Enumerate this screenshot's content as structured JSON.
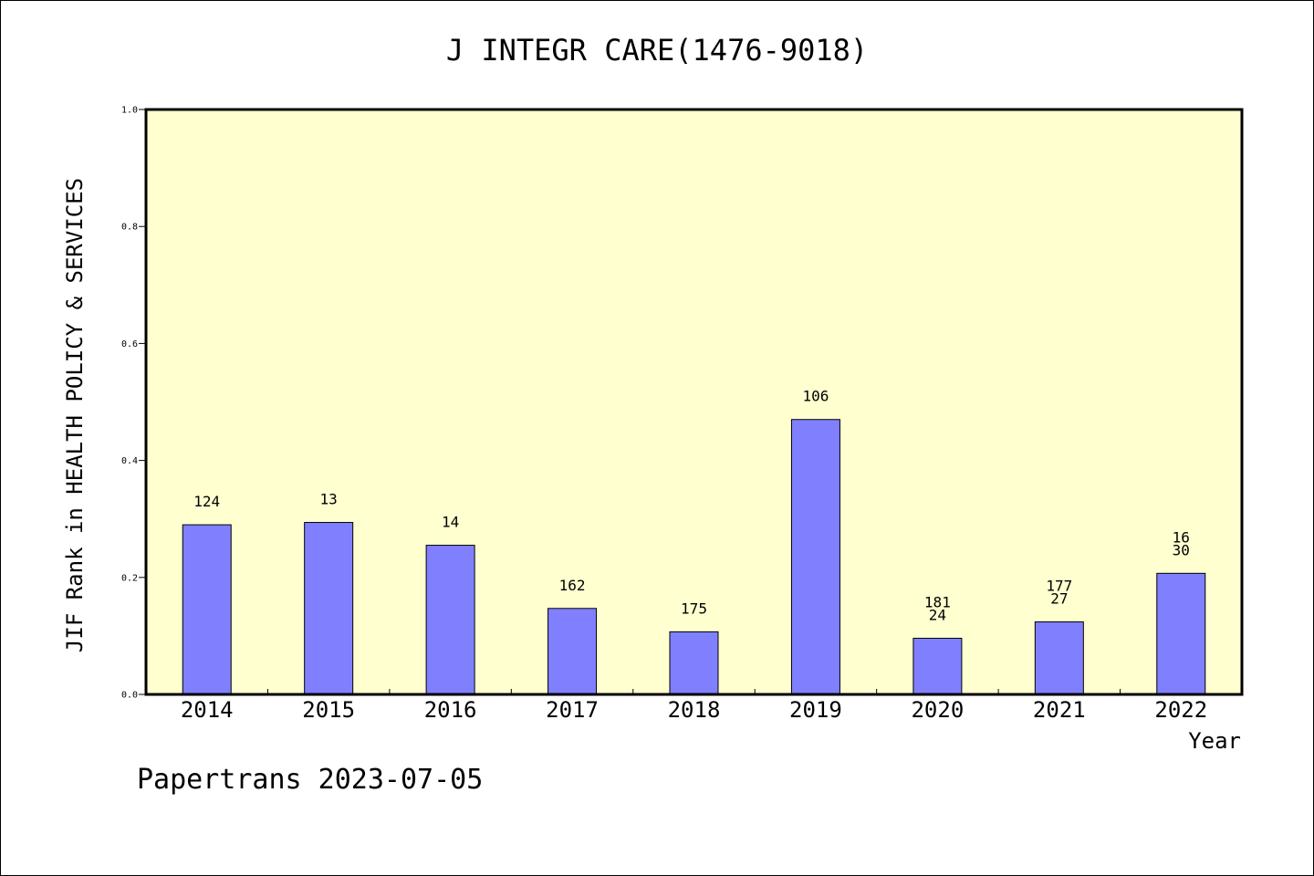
{
  "chart_data": {
    "type": "bar",
    "title": "J INTEGR CARE(1476-9018)",
    "xlabel": "Year",
    "ylabel": "JIF Rank in HEALTH POLICY & SERVICES",
    "ylim": [
      0,
      1.0
    ],
    "yticks": [
      "0.0",
      "0.2",
      "0.4",
      "0.6",
      "0.8",
      "1.0"
    ],
    "grid": false,
    "categories": [
      "2014",
      "2015",
      "2016",
      "2017",
      "2018",
      "2019",
      "2020",
      "2021",
      "2022"
    ],
    "values": [
      0.29,
      0.294,
      0.255,
      0.147,
      0.107,
      0.47,
      0.096,
      0.124,
      0.207
    ],
    "labels": [
      [
        "124"
      ],
      [
        "13"
      ],
      [
        "14"
      ],
      [
        "162"
      ],
      [
        "175"
      ],
      [
        "106"
      ],
      [
        "181",
        "24"
      ],
      [
        "177",
        "27"
      ],
      [
        "16",
        "30"
      ]
    ],
    "colors": {
      "bar": "#8080ff",
      "plot_background": "#ffffd0",
      "axes": "#000000"
    }
  },
  "footer": "Papertrans 2023-07-05"
}
